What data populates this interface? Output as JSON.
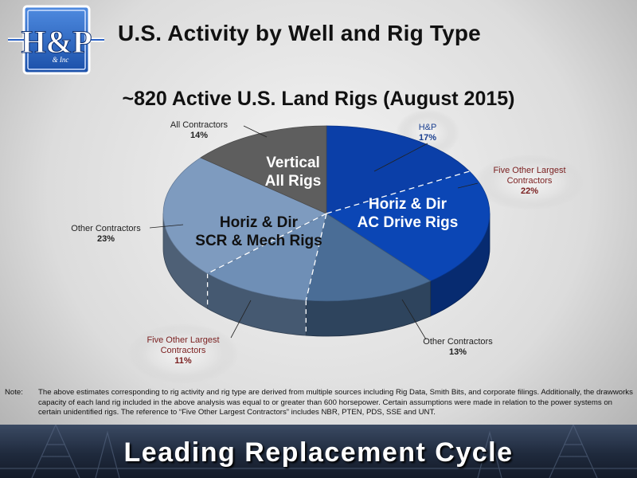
{
  "header": {
    "title": "U.S. Activity by Well and Rig Type",
    "logo": {
      "text": "H&P",
      "sub_text": "& Inc"
    }
  },
  "chart_data": {
    "type": "pie",
    "title": "~820 Active U.S. Land Rigs (August 2015)",
    "segments": [
      {
        "label": "H&P",
        "percent": "17%",
        "value": 17,
        "color": "#0b3fa8",
        "group": "Horiz & Dir AC Drive Rigs"
      },
      {
        "label": "Five Other Largest Contractors",
        "percent": "22%",
        "value": 22,
        "color": "#0b46b5",
        "group": "Horiz & Dir AC Drive Rigs"
      },
      {
        "label": "Other Contractors",
        "percent": "13%",
        "value": 13,
        "color": "#4a6d96",
        "group": "Horiz & Dir SCR & Mech Rigs"
      },
      {
        "label": "Five Other Largest Contractors",
        "percent": "11%",
        "value": 11,
        "color": "#6f8fb6",
        "group": "Horiz & Dir SCR & Mech Rigs"
      },
      {
        "label": "Other Contractors",
        "percent": "23%",
        "value": 23,
        "color": "#7e9bbf",
        "group": "Horiz & Dir SCR & Mech Rigs"
      },
      {
        "label": "All Contractors",
        "percent": "14%",
        "value": 14,
        "color": "#5e5e5e",
        "group": "Vertical All Rigs"
      }
    ],
    "groups": [
      {
        "lines": [
          "Vertical",
          "All Rigs"
        ],
        "color": "#5e5e5e"
      },
      {
        "lines": [
          "Horiz & Dir",
          "AC Drive Rigs"
        ],
        "color": "#0b46b5"
      },
      {
        "lines": [
          "Horiz & Dir",
          "SCR & Mech Rigs"
        ],
        "color": "#7e9bbf"
      }
    ]
  },
  "note": {
    "label": "Note:",
    "text": "The above estimates corresponding to rig activity and rig type are derived from multiple sources including Rig Data, Smith Bits, and corporate filings. Additionally, the drawworks capacity of each land rig included in the above analysis was equal to or greater than 600 horsepower. Certain assumptions were made in relation to the power systems on certain unidentified rigs. The reference to “Five Other Largest Contractors” includes NBR, PTEN, PDS, SSE and UNT."
  },
  "footer": {
    "text": "Leading Replacement Cycle"
  }
}
